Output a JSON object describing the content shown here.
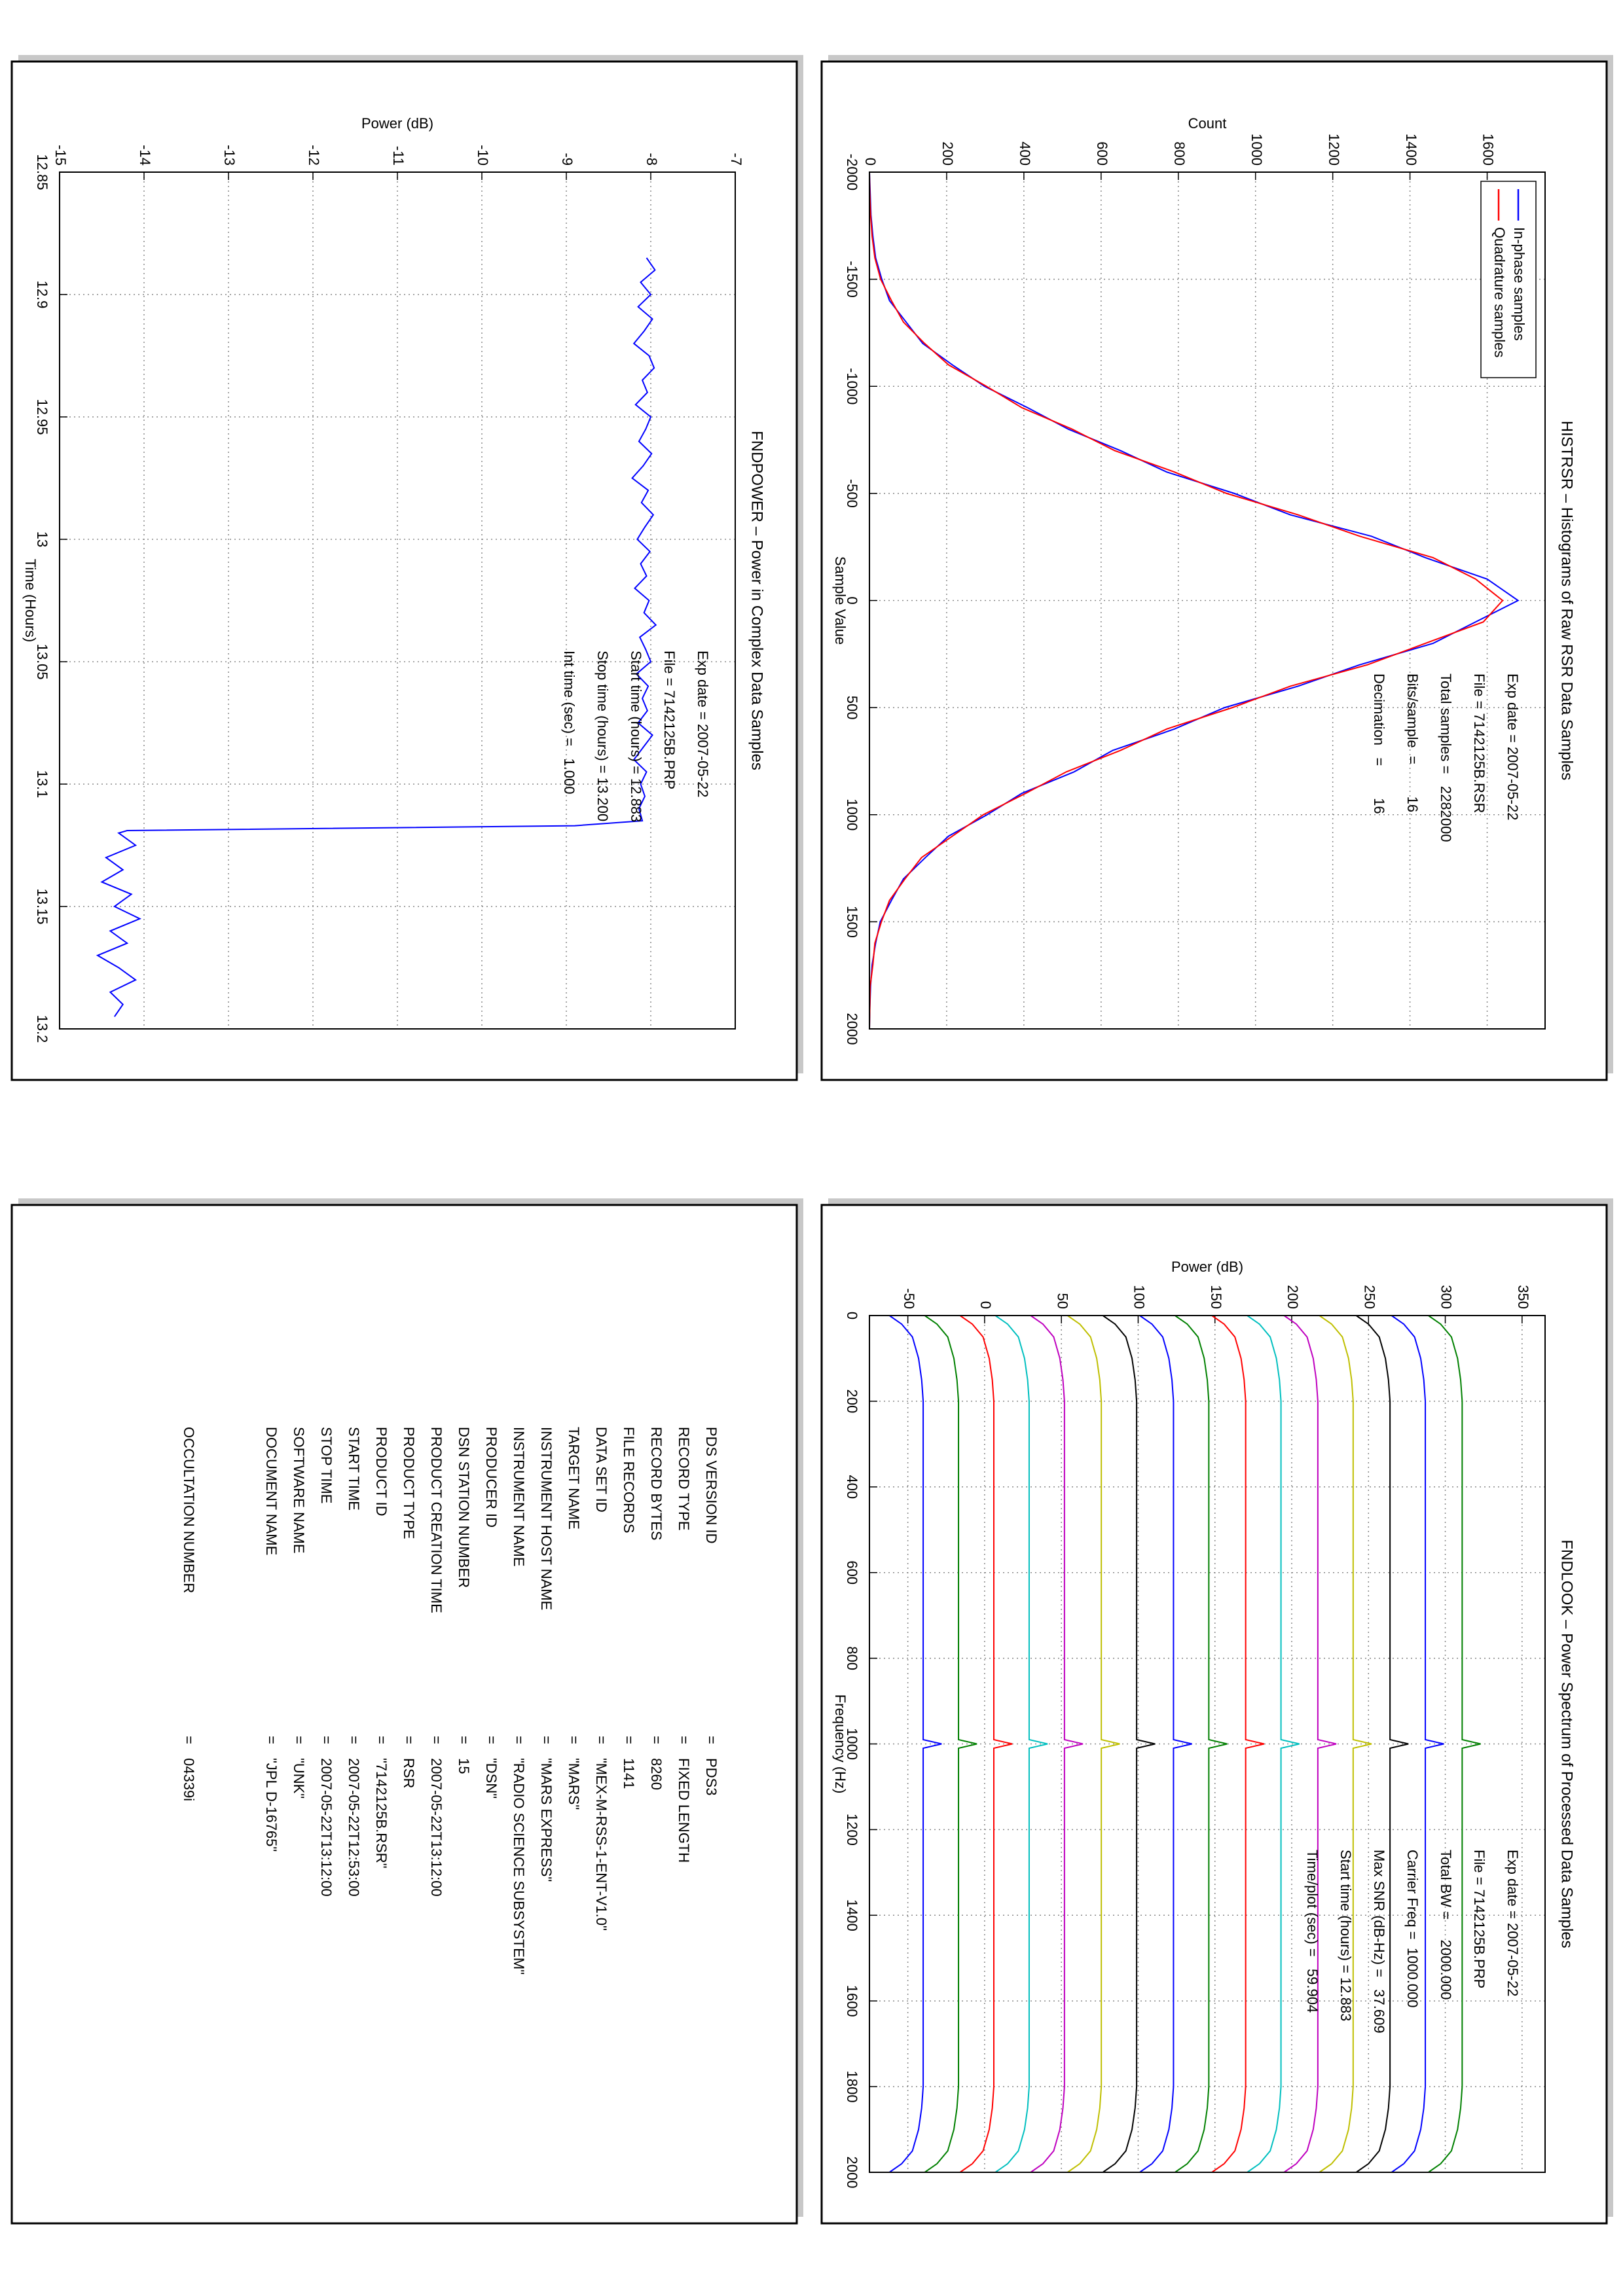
{
  "chart_data": [
    {
      "type": "line",
      "title": "HISTRSR – Histograms of Raw RSR Data Samples",
      "xlabel": "Sample Value",
      "ylabel": "Count",
      "x": [
        -2000,
        -1900,
        -1800,
        -1700,
        -1600,
        -1500,
        -1400,
        -1300,
        -1200,
        -1100,
        -1000,
        -900,
        -800,
        -700,
        -600,
        -500,
        -400,
        -300,
        -200,
        -100,
        0,
        100,
        200,
        300,
        400,
        500,
        600,
        700,
        800,
        900,
        1000,
        1100,
        1200,
        1300,
        1400,
        1500,
        1600,
        1700,
        1800,
        1900,
        2000
      ],
      "series": [
        {
          "name": "In-phase samples",
          "color": "#0000ff",
          "values": [
            0,
            2,
            4,
            9,
            16,
            32,
            52,
            95,
            138,
            215,
            298,
            410,
            515,
            650,
            770,
            945,
            1090,
            1300,
            1440,
            1600,
            1680,
            1570,
            1460,
            1270,
            1110,
            920,
            790,
            630,
            530,
            395,
            305,
            205,
            145,
            88,
            57,
            28,
            16,
            7,
            3,
            1,
            0
          ]
        },
        {
          "name": "Quadrature samples",
          "color": "#ff0000",
          "values": [
            0,
            1,
            3,
            7,
            14,
            29,
            57,
            88,
            143,
            205,
            303,
            395,
            525,
            635,
            790,
            925,
            1110,
            1270,
            1460,
            1570,
            1640,
            1590,
            1440,
            1290,
            1090,
            940,
            770,
            650,
            510,
            405,
            295,
            215,
            135,
            92,
            52,
            31,
            14,
            9,
            2,
            1,
            0
          ]
        }
      ],
      "xlim": [
        -2000,
        2000
      ],
      "xticks": [
        -2000,
        -1500,
        -1000,
        -500,
        0,
        500,
        1000,
        1500,
        2000
      ],
      "ylim": [
        0,
        1750
      ],
      "yticks": [
        0,
        200,
        400,
        600,
        800,
        1000,
        1200,
        1400,
        1600
      ],
      "grid": true,
      "legend": "upper left",
      "annotations": [
        "Exp date = 2007-05-22",
        "File = 7142125B.RSR",
        "Total samples =   2282000",
        "Bits/sample  =        16",
        "Decimation   =        16"
      ]
    },
    {
      "type": "line",
      "title": "FNDPOWER – Power in Complex Data Samples",
      "xlabel": "Time (Hours)",
      "ylabel": "Power (dB)",
      "x": [
        12.885,
        12.89,
        12.895,
        12.9,
        12.905,
        12.91,
        12.915,
        12.92,
        12.925,
        12.93,
        12.935,
        12.94,
        12.945,
        12.95,
        12.955,
        12.96,
        12.965,
        12.97,
        12.975,
        12.98,
        12.985,
        12.99,
        12.995,
        13,
        13.005,
        13.01,
        13.015,
        13.02,
        13.025,
        13.03,
        13.035,
        13.04,
        13.045,
        13.05,
        13.055,
        13.06,
        13.065,
        13.07,
        13.075,
        13.08,
        13.085,
        13.09,
        13.095,
        13.1,
        13.105,
        13.11,
        13.115,
        13.117,
        13.119,
        13.12,
        13.125,
        13.13,
        13.135,
        13.14,
        13.145,
        13.15,
        13.155,
        13.16,
        13.165,
        13.17,
        13.175,
        13.18,
        13.185,
        13.19,
        13.195
      ],
      "series": [
        {
          "color": "#0000ff",
          "values": [
            -8.05,
            -7.95,
            -8.12,
            -8.0,
            -8.15,
            -7.98,
            -8.08,
            -8.2,
            -8.02,
            -7.96,
            -8.1,
            -8.04,
            -8.18,
            -8.0,
            -8.06,
            -8.14,
            -7.99,
            -8.09,
            -8.22,
            -8.03,
            -8.11,
            -7.97,
            -8.07,
            -8.16,
            -8.01,
            -8.12,
            -8.05,
            -8.19,
            -8.02,
            -8.08,
            -7.94,
            -8.13,
            -8.06,
            -8.0,
            -8.17,
            -8.03,
            -8.1,
            -8.04,
            -8.15,
            -7.98,
            -8.09,
            -8.2,
            -8.05,
            -8.12,
            -8.07,
            -8.14,
            -8.1,
            -8.9,
            -14.2,
            -14.3,
            -14.1,
            -14.45,
            -14.25,
            -14.5,
            -14.15,
            -14.35,
            -14.05,
            -14.4,
            -14.2,
            -14.55,
            -14.3,
            -14.1,
            -14.4,
            -14.25,
            -14.35
          ]
        }
      ],
      "xlim": [
        12.85,
        13.2
      ],
      "xticks": [
        12.85,
        12.9,
        12.95,
        13,
        13.05,
        13.1,
        13.15,
        13.2
      ],
      "ylim": [
        -15,
        -7
      ],
      "yticks": [
        -15,
        -14,
        -13,
        -12,
        -11,
        -10,
        -9,
        -8,
        -7
      ],
      "grid": true,
      "annotations": [
        "Exp date = 2007-05-22",
        "File = 7142125B.PRP",
        "Start time (hours) = 12.883",
        "Stop time (hours) = 13.200",
        "Int time (sec) =   1.000"
      ]
    },
    {
      "type": "line",
      "title": "FNDLOOK – Power Spectrum of Processed Data Samples",
      "xlabel": "Frequency (Hz)",
      "ylabel": "Power (dB)",
      "x": [
        0,
        20,
        50,
        100,
        150,
        200,
        400,
        600,
        800,
        990,
        1000,
        1010,
        1200,
        1400,
        1600,
        1800,
        1850,
        1900,
        1950,
        1980,
        2000
      ],
      "series": [
        {
          "color": "#0000ff",
          "values": [
            -62,
            -54,
            -47,
            -43,
            -41,
            -40,
            -40,
            -40,
            -40,
            -40,
            -28,
            -40,
            -40,
            -40,
            -40,
            -40,
            -41,
            -43,
            -47,
            -54,
            -62
          ]
        },
        {
          "color": "#008000",
          "values": [
            -39,
            -31,
            -24,
            -20,
            -18,
            -17,
            -17,
            -17,
            -17,
            -17,
            -5,
            -17,
            -17,
            -17,
            -17,
            -17,
            -18,
            -20,
            -24,
            -31,
            -39
          ]
        },
        {
          "color": "#ff0000",
          "values": [
            -16,
            -8,
            -1,
            3,
            5,
            6,
            6,
            6,
            6,
            6,
            18,
            6,
            6,
            6,
            6,
            6,
            5,
            3,
            -1,
            -8,
            -16
          ]
        },
        {
          "color": "#00bfbf",
          "values": [
            7,
            15,
            22,
            26,
            28,
            29,
            29,
            29,
            29,
            29,
            41,
            29,
            29,
            29,
            29,
            29,
            28,
            26,
            22,
            15,
            7
          ]
        },
        {
          "color": "#bf00bf",
          "values": [
            30,
            38,
            45,
            49,
            51,
            52,
            52,
            52,
            52,
            52,
            64,
            52,
            52,
            52,
            52,
            52,
            51,
            49,
            45,
            38,
            30
          ]
        },
        {
          "color": "#bfbf00",
          "values": [
            54,
            62,
            69,
            73,
            75,
            76,
            76,
            76,
            76,
            76,
            88,
            76,
            76,
            76,
            76,
            76,
            75,
            73,
            69,
            62,
            54
          ]
        },
        {
          "color": "#000000",
          "values": [
            77,
            85,
            92,
            96,
            98,
            99,
            99,
            99,
            99,
            99,
            111,
            99,
            99,
            99,
            99,
            99,
            98,
            96,
            92,
            85,
            77
          ]
        },
        {
          "color": "#0000ff",
          "values": [
            101,
            109,
            116,
            120,
            122,
            123,
            123,
            123,
            123,
            123,
            135,
            123,
            123,
            123,
            123,
            123,
            122,
            120,
            116,
            109,
            101
          ]
        },
        {
          "color": "#008000",
          "values": [
            124,
            132,
            139,
            143,
            145,
            146,
            146,
            146,
            146,
            146,
            158,
            146,
            146,
            146,
            146,
            146,
            145,
            143,
            139,
            132,
            124
          ]
        },
        {
          "color": "#ff0000",
          "values": [
            148,
            156,
            163,
            167,
            169,
            170,
            170,
            170,
            170,
            170,
            182,
            170,
            170,
            170,
            170,
            170,
            169,
            167,
            163,
            156,
            148
          ]
        },
        {
          "color": "#00bfbf",
          "values": [
            171,
            179,
            186,
            190,
            192,
            193,
            193,
            193,
            193,
            193,
            205,
            193,
            193,
            193,
            193,
            193,
            192,
            190,
            186,
            179,
            171
          ]
        },
        {
          "color": "#bf00bf",
          "values": [
            195,
            203,
            210,
            214,
            216,
            217,
            217,
            217,
            217,
            217,
            229,
            217,
            217,
            217,
            217,
            217,
            216,
            214,
            210,
            203,
            195
          ]
        },
        {
          "color": "#bfbf00",
          "values": [
            218,
            226,
            233,
            237,
            239,
            240,
            240,
            240,
            240,
            240,
            252,
            240,
            240,
            240,
            240,
            240,
            239,
            237,
            233,
            226,
            218
          ]
        },
        {
          "color": "#000000",
          "values": [
            242,
            250,
            257,
            261,
            263,
            264,
            264,
            264,
            264,
            264,
            276,
            264,
            264,
            264,
            264,
            264,
            263,
            261,
            257,
            250,
            242
          ]
        },
        {
          "color": "#0000ff",
          "values": [
            265,
            273,
            280,
            284,
            286,
            287,
            287,
            287,
            287,
            287,
            299,
            287,
            287,
            287,
            287,
            287,
            286,
            284,
            280,
            273,
            265
          ]
        },
        {
          "color": "#008000",
          "values": [
            289,
            297,
            304,
            308,
            310,
            311,
            311,
            311,
            311,
            311,
            323,
            311,
            311,
            311,
            311,
            311,
            310,
            308,
            304,
            297,
            289
          ]
        }
      ],
      "xlim": [
        0,
        2000
      ],
      "xticks": [
        0,
        200,
        400,
        600,
        800,
        1000,
        1200,
        1400,
        1600,
        1800,
        2000
      ],
      "ylim": [
        -75,
        365
      ],
      "yticks": [
        -50,
        0,
        50,
        100,
        150,
        200,
        250,
        300,
        350
      ],
      "grid": true,
      "annotations": [
        "Exp date = 2007-05-22",
        "File = 7142125B.PRP",
        "Total BW =     2000.000",
        "Carrier Freq =  1000.000",
        "Max SNR (dB-Hz) =   37.609",
        "Start time (hours) = 12.883",
        "Time/plot (sec) =   59.904"
      ]
    }
  ],
  "label_table": {
    "separator": "=",
    "rows": [
      {
        "key": "PDS VERSION ID",
        "value": "PDS3"
      },
      {
        "key": "RECORD TYPE",
        "value": "FIXED LENGTH"
      },
      {
        "key": "RECORD BYTES",
        "value": "8260"
      },
      {
        "key": "FILE RECORDS",
        "value": "1141"
      },
      {
        "key": "DATA SET ID",
        "value": "\"MEX-M-RSS-1-ENT-V1.0\""
      },
      {
        "key": "TARGET NAME",
        "value": "\"MARS\""
      },
      {
        "key": "INSTRUMENT HOST NAME",
        "value": "\"MARS EXPRESS\""
      },
      {
        "key": "INSTRUMENT NAME",
        "value": "\"RADIO SCIENCE SUBSYSTEM\""
      },
      {
        "key": "PRODUCER ID",
        "value": "\"DSN\""
      },
      {
        "key": "DSN STATION NUMBER",
        "value": "15"
      },
      {
        "key": "PRODUCT CREATION TIME",
        "value": "2007-05-22T13:12:00"
      },
      {
        "key": "PRODUCT TYPE",
        "value": "RSR"
      },
      {
        "key": "PRODUCT ID",
        "value": "\"7142125B.RSR\""
      },
      {
        "key": "START TIME",
        "value": "2007-05-22T12:53:00"
      },
      {
        "key": "STOP TIME",
        "value": "2007-05-22T13:12:00"
      },
      {
        "key": "SOFTWARE NAME",
        "value": "\"UNK\""
      },
      {
        "key": "DOCUMENT NAME",
        "value": "\"JPL D-16765\""
      },
      {
        "key": "OCCULTATION NUMBER",
        "value": "04339i"
      }
    ]
  }
}
